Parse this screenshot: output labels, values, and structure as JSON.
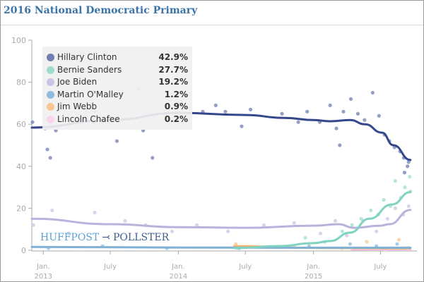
{
  "title": "2016 National Democratic Primary",
  "logo": {
    "left": "HUFFPOST",
    "right": "POLLSTER",
    "mark": "swoosh-icon"
  },
  "chart_data": {
    "type": "scatter",
    "title": "2016 National Democratic Primary",
    "xlabel": "",
    "ylabel": "",
    "xlim": [
      "2012-12-01",
      "2015-09-28"
    ],
    "ylim": [
      0,
      100
    ],
    "yticks": [
      0,
      20,
      40,
      60,
      80,
      100
    ],
    "xticks": [
      {
        "date": "2013-01-01",
        "label": "Jan.",
        "sublabel": "2013"
      },
      {
        "date": "2013-07-01",
        "label": "July",
        "sublabel": ""
      },
      {
        "date": "2014-01-01",
        "label": "Jan.",
        "sublabel": "2014"
      },
      {
        "date": "2014-07-01",
        "label": "July",
        "sublabel": ""
      },
      {
        "date": "2015-01-01",
        "label": "Jan.",
        "sublabel": "2015"
      },
      {
        "date": "2015-07-01",
        "label": "July",
        "sublabel": ""
      }
    ],
    "grid": false,
    "legend_placement": "top-left",
    "series": [
      {
        "name": "Hillary Clinton",
        "value_label": "42.9%",
        "line_color": "#34478c",
        "dot_color": "#6f7fb0",
        "trend": [
          [
            "2012-12-01",
            58.4
          ],
          [
            "2013-07-01",
            62
          ],
          [
            "2014-01-01",
            65.4
          ],
          [
            "2014-07-01",
            64.4
          ],
          [
            "2014-10-15",
            63
          ],
          [
            "2015-01-01",
            62
          ],
          [
            "2015-02-15",
            61.4
          ],
          [
            "2015-04-10",
            62
          ],
          [
            "2015-05-20",
            60
          ],
          [
            "2015-07-05",
            56
          ],
          [
            "2015-08-05",
            50
          ],
          [
            "2015-09-20",
            43
          ]
        ],
        "points": [
          [
            "2012-12-03",
            61
          ],
          [
            "2013-01-06",
            58
          ],
          [
            "2013-01-12",
            48
          ],
          [
            "2013-01-20",
            44
          ],
          [
            "2013-02-04",
            57
          ],
          [
            "2013-03-27",
            61
          ],
          [
            "2013-05-18",
            61
          ],
          [
            "2013-07-19",
            52
          ],
          [
            "2013-09-15",
            77
          ],
          [
            "2013-09-28",
            57
          ],
          [
            "2013-10-23",
            44
          ],
          [
            "2013-12-04",
            62
          ],
          [
            "2014-03-08",
            66
          ],
          [
            "2014-04-12",
            69
          ],
          [
            "2014-05-08",
            66
          ],
          [
            "2014-06-21",
            59
          ],
          [
            "2014-07-15",
            67
          ],
          [
            "2014-10-08",
            65
          ],
          [
            "2014-11-21",
            61
          ],
          [
            "2014-12-15",
            66
          ],
          [
            "2015-01-18",
            61
          ],
          [
            "2015-02-15",
            69
          ],
          [
            "2015-03-04",
            58
          ],
          [
            "2015-03-13",
            50
          ],
          [
            "2015-03-23",
            66
          ],
          [
            "2015-04-12",
            72
          ],
          [
            "2015-05-01",
            65
          ],
          [
            "2015-05-19",
            62
          ],
          [
            "2015-06-10",
            75
          ],
          [
            "2015-06-27",
            64
          ],
          [
            "2015-07-12",
            55
          ],
          [
            "2015-07-25",
            52
          ],
          [
            "2015-08-08",
            49
          ],
          [
            "2015-08-23",
            47
          ],
          [
            "2015-09-02",
            44
          ],
          [
            "2015-09-04",
            37
          ],
          [
            "2015-09-12",
            40
          ],
          [
            "2015-09-15",
            42
          ]
        ]
      },
      {
        "name": "Bernie Sanders",
        "value_label": "27.7%",
        "line_color": "#7fd3c0",
        "dot_color": "#9fdccd",
        "trend": [
          [
            "2014-06-01",
            1
          ],
          [
            "2014-10-01",
            2
          ],
          [
            "2015-01-01",
            3.4
          ],
          [
            "2015-02-15",
            4.4
          ],
          [
            "2015-04-10",
            8.4
          ],
          [
            "2015-06-01",
            15
          ],
          [
            "2015-08-01",
            21.8
          ],
          [
            "2015-09-20",
            27.7
          ]
        ],
        "points": [
          [
            "2014-06-10",
            1
          ],
          [
            "2014-12-10",
            6
          ],
          [
            "2015-02-01",
            4
          ],
          [
            "2015-03-20",
            9
          ],
          [
            "2015-04-15",
            12
          ],
          [
            "2015-05-10",
            15
          ],
          [
            "2015-06-05",
            19
          ],
          [
            "2015-06-25",
            17
          ],
          [
            "2015-07-10",
            24
          ],
          [
            "2015-07-28",
            21
          ],
          [
            "2015-08-10",
            33
          ],
          [
            "2015-08-25",
            25
          ],
          [
            "2015-09-05",
            30
          ],
          [
            "2015-09-18",
            35
          ],
          [
            "2015-09-20",
            28
          ]
        ]
      },
      {
        "name": "Joe Biden",
        "value_label": "19.2%",
        "line_color": "#b8b2dc",
        "dot_color": "#cac5e6",
        "trend": [
          [
            "2012-12-01",
            15
          ],
          [
            "2013-07-01",
            12.4
          ],
          [
            "2014-01-01",
            11
          ],
          [
            "2014-07-01",
            10.7
          ],
          [
            "2015-01-01",
            11.7
          ],
          [
            "2015-03-10",
            12.4
          ],
          [
            "2015-04-20",
            10.7
          ],
          [
            "2015-07-01",
            11.7
          ],
          [
            "2015-07-25",
            12.4
          ],
          [
            "2015-09-20",
            19.2
          ]
        ],
        "points": [
          [
            "2012-12-05",
            12
          ],
          [
            "2013-01-25",
            19
          ],
          [
            "2013-03-10",
            8
          ],
          [
            "2013-05-20",
            18
          ],
          [
            "2013-08-10",
            14
          ],
          [
            "2013-10-05",
            12
          ],
          [
            "2013-12-15",
            9
          ],
          [
            "2014-02-20",
            12
          ],
          [
            "2014-05-15",
            9
          ],
          [
            "2014-08-20",
            12
          ],
          [
            "2014-11-10",
            13
          ],
          [
            "2015-01-20",
            8
          ],
          [
            "2015-03-01",
            14
          ],
          [
            "2015-04-01",
            7
          ],
          [
            "2015-05-15",
            14
          ],
          [
            "2015-06-20",
            9
          ],
          [
            "2015-07-20",
            15
          ],
          [
            "2015-08-10",
            20
          ],
          [
            "2015-09-01",
            17
          ],
          [
            "2015-09-15",
            21
          ]
        ]
      },
      {
        "name": "Martin O'Malley",
        "value_label": "1.2%",
        "line_color": "#7fb0d6",
        "dot_color": "#8fbcdc",
        "trend": [
          [
            "2012-12-01",
            1.6
          ],
          [
            "2014-01-01",
            1.3
          ],
          [
            "2015-01-01",
            1.2
          ],
          [
            "2015-09-20",
            1.2
          ]
        ],
        "points": [
          [
            "2013-01-15",
            1
          ],
          [
            "2013-06-10",
            2
          ],
          [
            "2013-12-01",
            1
          ],
          [
            "2014-06-15",
            1
          ],
          [
            "2014-12-20",
            2
          ],
          [
            "2015-04-10",
            3
          ],
          [
            "2015-06-20",
            2
          ],
          [
            "2015-08-15",
            3
          ],
          [
            "2015-09-15",
            1
          ]
        ]
      },
      {
        "name": "Jim Webb",
        "value_label": "0.9%",
        "line_color": "#f9b870",
        "dot_color": "#f9c590",
        "trend": [
          [
            "2014-06-01",
            2
          ],
          [
            "2015-01-01",
            1.1
          ],
          [
            "2015-09-20",
            0.9
          ]
        ],
        "points": [
          [
            "2014-06-05",
            3
          ],
          [
            "2014-11-10",
            2
          ],
          [
            "2015-03-20",
            1
          ],
          [
            "2015-05-25",
            4
          ],
          [
            "2015-08-20",
            5
          ],
          [
            "2015-09-10",
            1
          ]
        ]
      },
      {
        "name": "Lincoln Chafee",
        "value_label": "0.2%",
        "line_color": "#f7c8e2",
        "dot_color": "#fbd3ea",
        "trend": [
          [
            "2015-04-15",
            0.3
          ],
          [
            "2015-09-20",
            0.2
          ]
        ],
        "points": [
          [
            "2015-05-10",
            1
          ],
          [
            "2015-07-15",
            0
          ],
          [
            "2015-09-05",
            1
          ]
        ]
      }
    ]
  }
}
